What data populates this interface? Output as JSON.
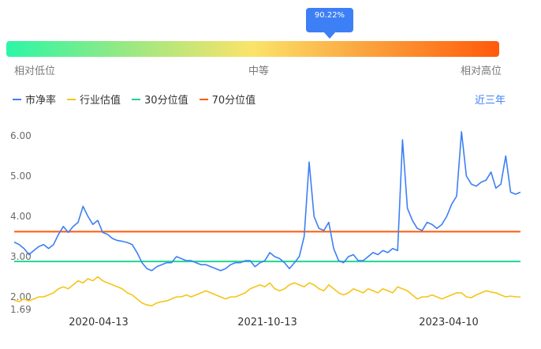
{
  "gauge": {
    "percentile_label": "90.22%",
    "percentile_value": 0.9022,
    "low_label": "相对低位",
    "mid_label": "中等",
    "high_label": "相对高位"
  },
  "legend": {
    "items": [
      {
        "label": "市净率",
        "color": "#3d7ff5"
      },
      {
        "label": "行业估值",
        "color": "#f5c518"
      },
      {
        "label": "30分位值",
        "color": "#1ed690"
      },
      {
        "label": "70分位值",
        "color": "#ff5a0a"
      }
    ]
  },
  "period_label": "近三年",
  "chart_data": {
    "type": "line",
    "x_tick_labels": [
      "2020-04-13",
      "2021-10-13",
      "2023-04-10"
    ],
    "y_tick_labels": [
      "6.00",
      "5.00",
      "4.00",
      "3.00",
      "2.00",
      "1.69"
    ],
    "ylim": [
      1.69,
      6.25
    ],
    "reference_lines": [
      {
        "name": "30分位值",
        "value": 2.88
      },
      {
        "name": "70分位值",
        "value": 3.62
      }
    ],
    "series": [
      {
        "name": "市净率",
        "values": [
          3.36,
          3.3,
          3.2,
          3.05,
          3.15,
          3.25,
          3.3,
          3.2,
          3.3,
          3.55,
          3.75,
          3.6,
          3.75,
          3.85,
          4.25,
          4.0,
          3.8,
          3.9,
          3.6,
          3.55,
          3.45,
          3.4,
          3.38,
          3.35,
          3.3,
          3.1,
          2.85,
          2.7,
          2.65,
          2.75,
          2.8,
          2.85,
          2.85,
          3.0,
          2.95,
          2.9,
          2.9,
          2.85,
          2.8,
          2.8,
          2.75,
          2.7,
          2.65,
          2.7,
          2.8,
          2.85,
          2.85,
          2.9,
          2.9,
          2.75,
          2.85,
          2.9,
          3.1,
          3.0,
          2.95,
          2.85,
          2.7,
          2.85,
          3.0,
          3.5,
          5.35,
          4.0,
          3.7,
          3.65,
          3.85,
          3.2,
          2.9,
          2.85,
          3.0,
          3.05,
          2.9,
          2.9,
          3.0,
          3.1,
          3.05,
          3.15,
          3.1,
          3.2,
          3.15,
          5.9,
          4.2,
          3.9,
          3.7,
          3.65,
          3.85,
          3.8,
          3.7,
          3.8,
          4.0,
          4.3,
          4.5,
          6.1,
          5.0,
          4.8,
          4.75,
          4.85,
          4.9,
          5.1,
          4.7,
          4.8,
          5.5,
          4.6,
          4.55,
          4.6
        ],
        "color": "#3d7ff5"
      },
      {
        "name": "行业估值",
        "values": [
          1.92,
          1.88,
          1.95,
          1.9,
          1.95,
          2.0,
          2.0,
          2.05,
          2.1,
          2.2,
          2.25,
          2.2,
          2.3,
          2.4,
          2.35,
          2.45,
          2.4,
          2.5,
          2.4,
          2.35,
          2.3,
          2.25,
          2.2,
          2.1,
          2.05,
          1.95,
          1.85,
          1.8,
          1.78,
          1.85,
          1.88,
          1.9,
          1.95,
          2.0,
          2.0,
          2.05,
          2.0,
          2.05,
          2.1,
          2.15,
          2.1,
          2.05,
          2.0,
          1.95,
          2.0,
          2.0,
          2.05,
          2.1,
          2.2,
          2.25,
          2.3,
          2.25,
          2.35,
          2.2,
          2.15,
          2.2,
          2.3,
          2.35,
          2.3,
          2.25,
          2.35,
          2.3,
          2.2,
          2.15,
          2.3,
          2.2,
          2.1,
          2.05,
          2.1,
          2.2,
          2.15,
          2.1,
          2.2,
          2.15,
          2.1,
          2.2,
          2.15,
          2.1,
          2.25,
          2.2,
          2.15,
          2.05,
          1.95,
          2.0,
          2.0,
          2.05,
          2.0,
          1.95,
          2.0,
          2.05,
          2.1,
          2.1,
          2.0,
          1.98,
          2.05,
          2.1,
          2.15,
          2.12,
          2.1,
          2.05,
          2.0,
          2.02,
          2.0,
          2.0
        ],
        "color": "#f5c518"
      }
    ]
  }
}
